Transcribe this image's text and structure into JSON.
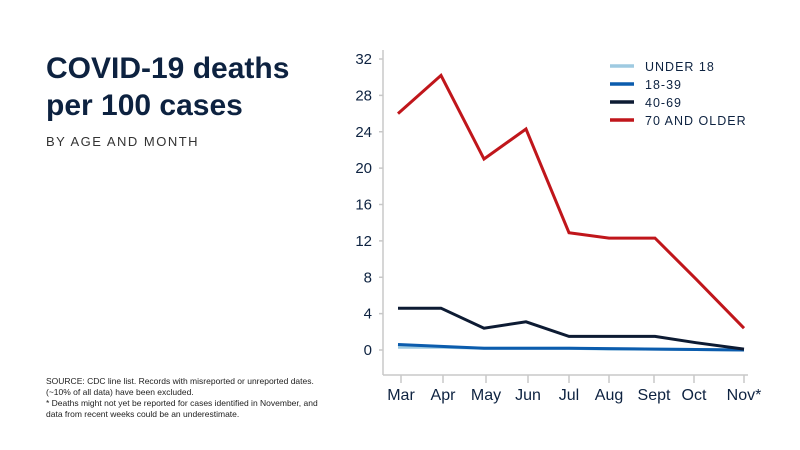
{
  "chart_data": {
    "type": "line",
    "title": "COVID-19 deaths per 100 cases",
    "subtitle": "BY AGE AND MONTH",
    "xlabel": "",
    "ylabel": "",
    "categories": [
      "Mar",
      "Apr",
      "May",
      "Jun",
      "Jul",
      "Aug",
      "Sept",
      "Oct",
      "Nov*"
    ],
    "yticks": [
      "0",
      "4",
      "8",
      "12",
      "16",
      "20",
      "24",
      "28",
      "32"
    ],
    "ylim": [
      0,
      32
    ],
    "grid": false,
    "legend_position": "top-right",
    "series": [
      {
        "name": "UNDER 18",
        "color": "#9ecae1",
        "values": [
          0.3,
          0.3,
          0.2,
          0.2,
          0.2,
          0.1,
          0.1,
          0.05,
          0
        ]
      },
      {
        "name": "18-39",
        "color": "#0b5cad",
        "values": [
          0.6,
          0.4,
          0.2,
          0.2,
          0.2,
          0.15,
          0.1,
          0.05,
          0
        ]
      },
      {
        "name": "40-69",
        "color": "#0d1b33",
        "values": [
          4.6,
          4.6,
          2.4,
          3.1,
          1.5,
          1.5,
          1.5,
          0.8,
          0.1
        ]
      },
      {
        "name": "70 AND OLDER",
        "color": "#c0161b",
        "values": [
          26,
          30.2,
          21,
          24.3,
          12.9,
          12.3,
          12.3,
          7.8,
          2.4
        ]
      }
    ]
  },
  "notes": {
    "line1": "SOURCE: CDC line list. Records with misreported or unreported dates.",
    "line2": "(~10% of all data) have been excluded.",
    "line3": "* Deaths might not yet be reported for cases identified in November, and",
    "line4": "data from recent weeks could be an underestimate."
  }
}
